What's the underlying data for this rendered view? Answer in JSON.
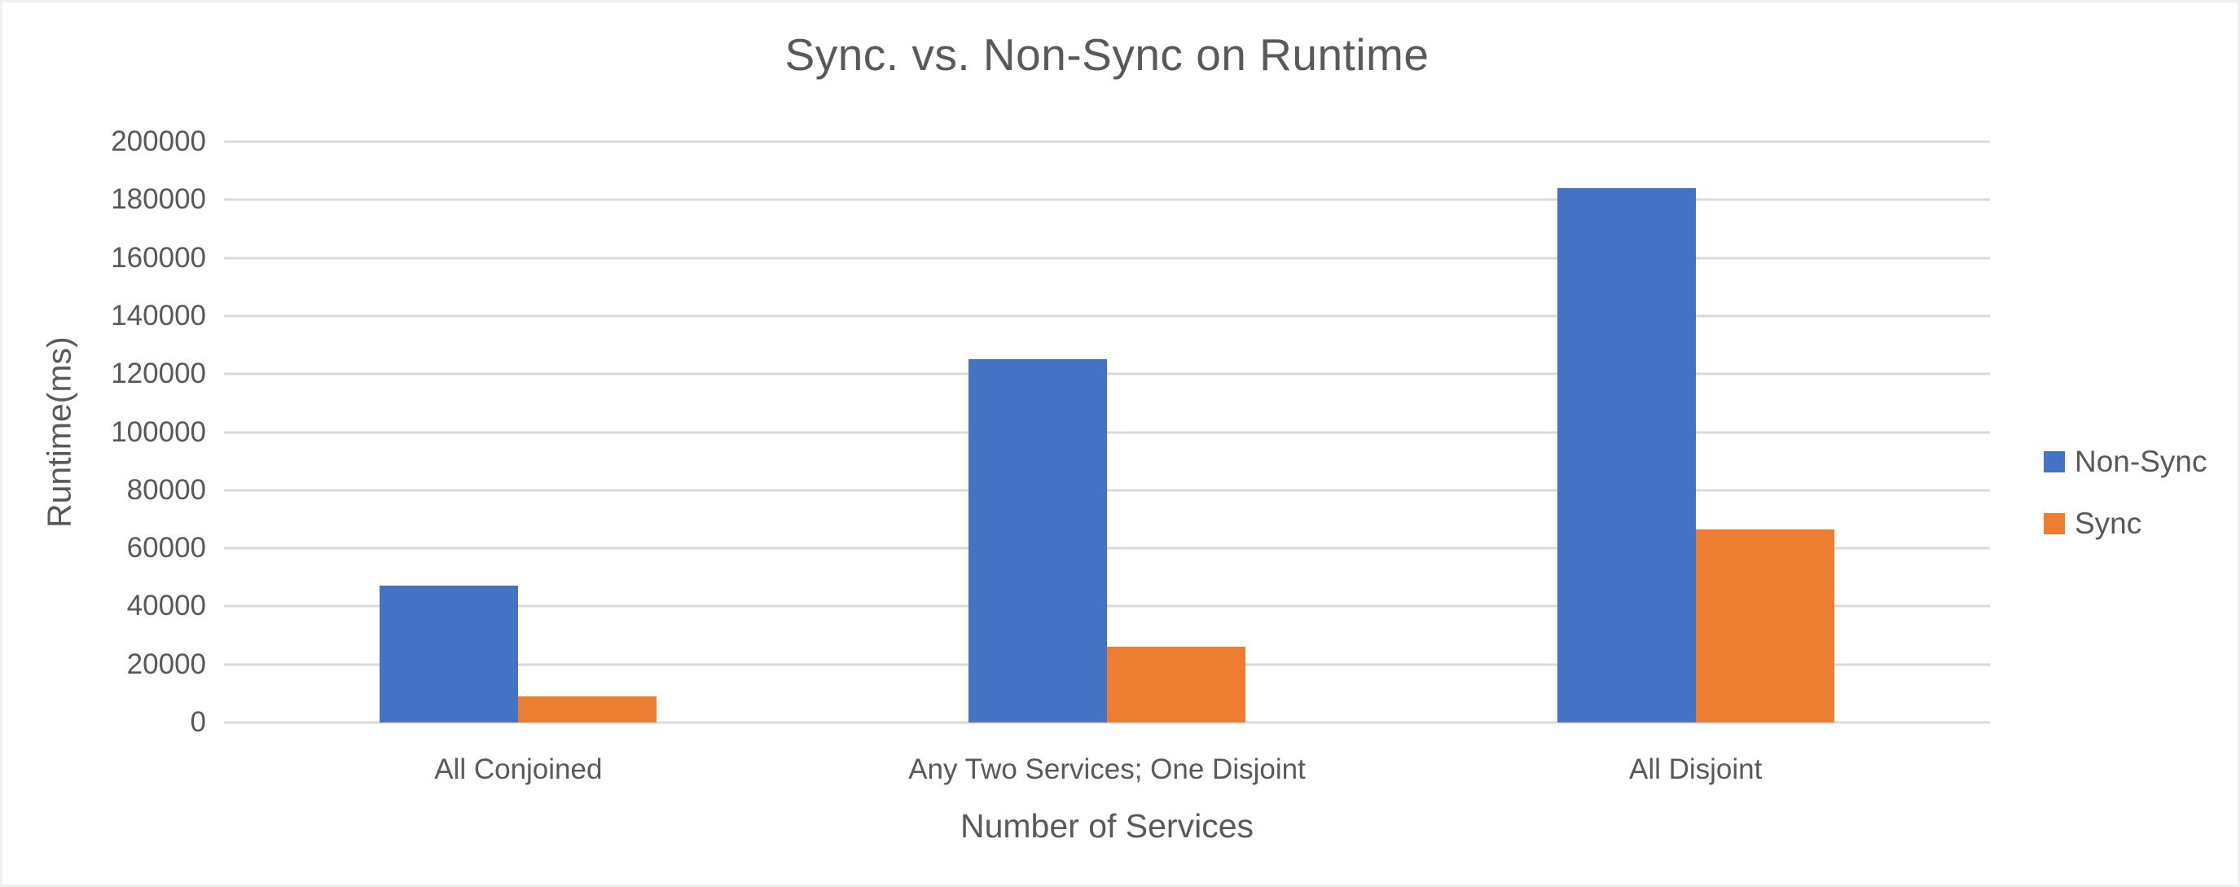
{
  "chart_data": {
    "type": "bar",
    "title": "Sync. vs. Non-Sync on Runtime",
    "xlabel": "Number of Services",
    "ylabel": "Runtime(ms)",
    "categories": [
      "All Conjoined",
      "Any Two Services; One Disjoint",
      "All Disjoint"
    ],
    "series": [
      {
        "name": "Non-Sync",
        "color": "#4472C4",
        "values": [
          47000,
          125000,
          184000
        ]
      },
      {
        "name": "Sync",
        "color": "#ED7D31",
        "values": [
          9000,
          26000,
          66500
        ]
      }
    ],
    "ylim": [
      0,
      200000
    ],
    "ytick_step": 20000,
    "yticks": [
      0,
      20000,
      40000,
      60000,
      80000,
      100000,
      120000,
      140000,
      160000,
      180000,
      200000
    ],
    "grid": true,
    "legend_position": "right-middle",
    "colors": {
      "text": "#595959",
      "gridline": "#D9D9D9",
      "background": "#FFFFFF"
    }
  }
}
